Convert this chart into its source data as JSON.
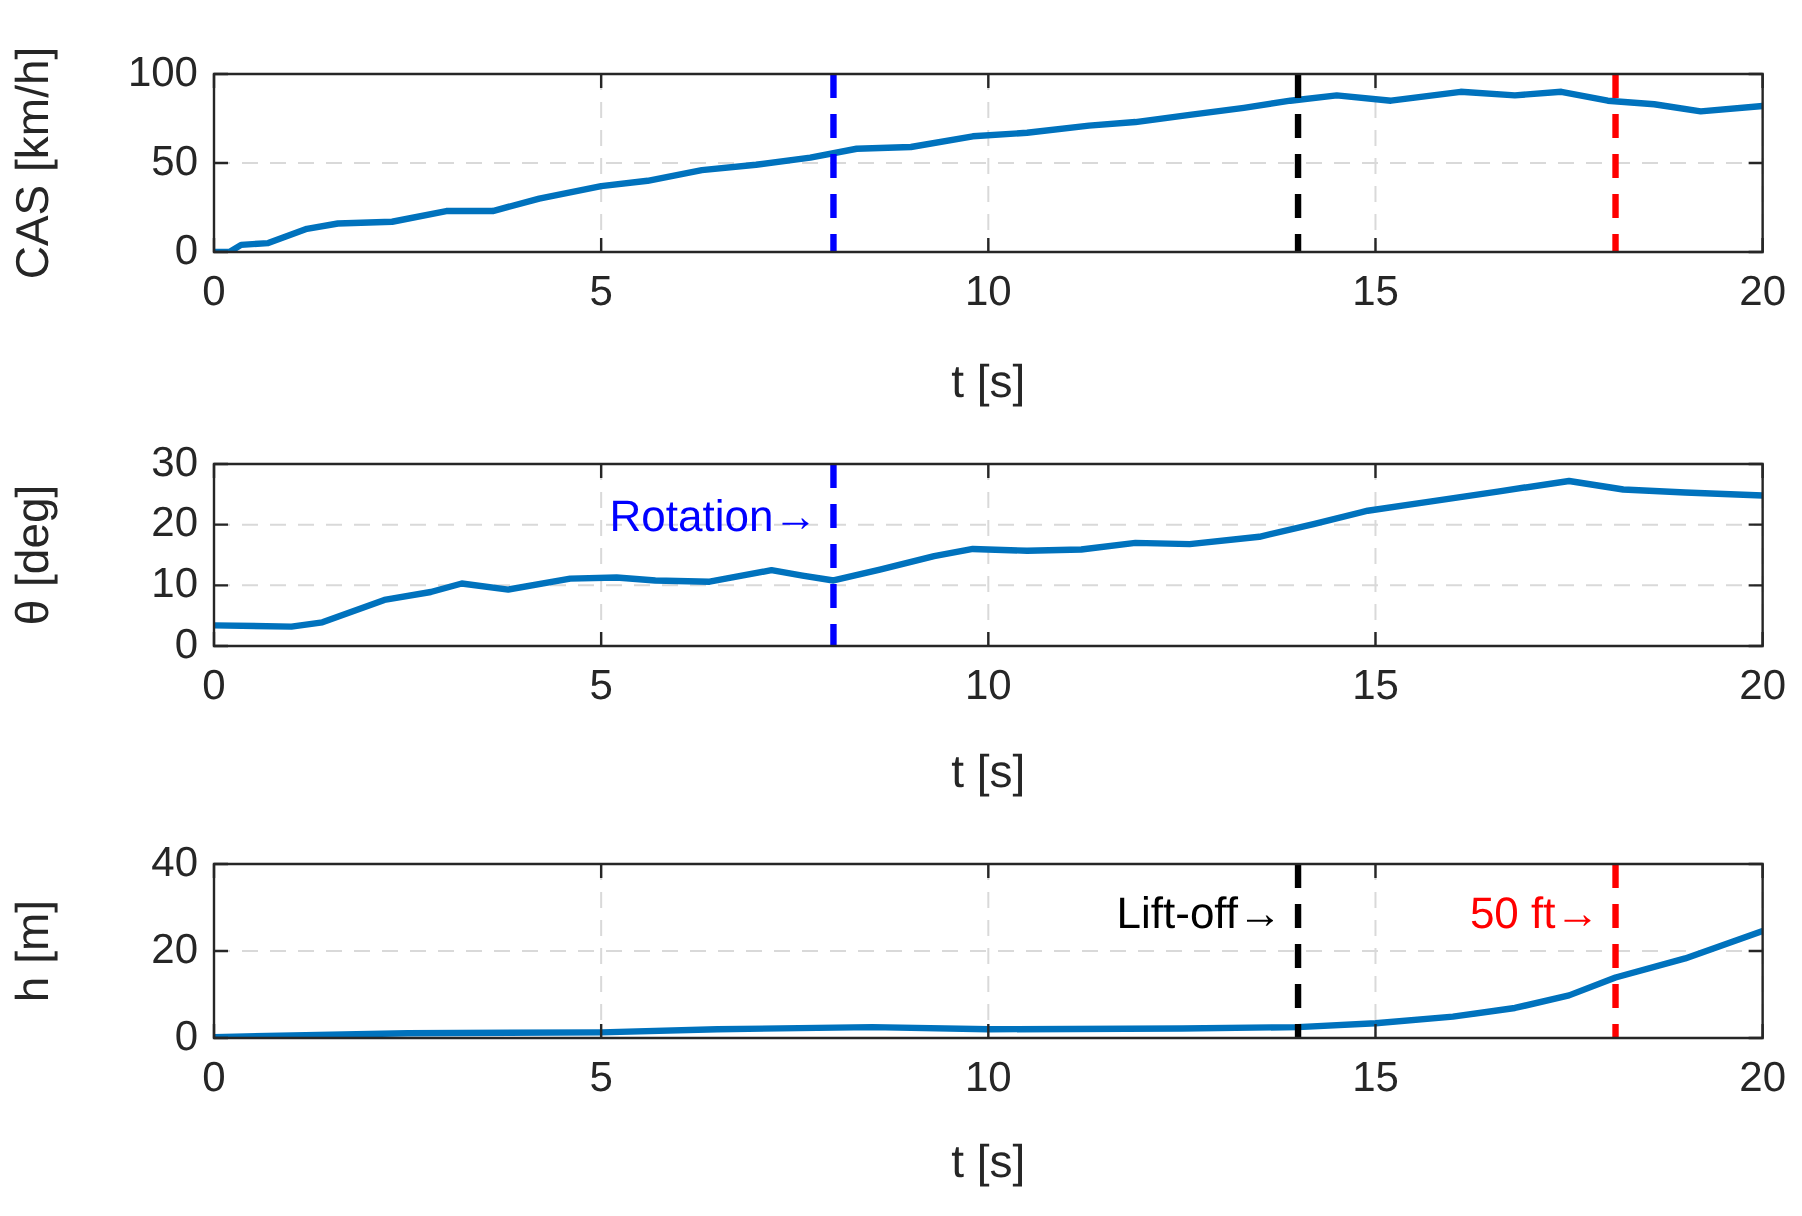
{
  "chart_data": [
    {
      "type": "line",
      "xlabel": "t [s]",
      "ylabel": "CAS [km/h]",
      "xlim": [
        0,
        20
      ],
      "xticks": [
        0,
        5,
        10,
        15,
        20
      ],
      "ylim": [
        0,
        100
      ],
      "yticks": [
        0,
        50,
        100
      ],
      "grid": true,
      "x": [
        0,
        0.2,
        0.35,
        0.7,
        1.2,
        1.6,
        2.3,
        3.0,
        3.6,
        4.2,
        5.0,
        5.6,
        6.3,
        7.0,
        7.7,
        8.3,
        9.0,
        9.8,
        10.5,
        11.3,
        11.9,
        12.6,
        13.3,
        13.9,
        14.5,
        15.2,
        16.1,
        16.8,
        17.4,
        18.0,
        18.6,
        19.2,
        20
      ],
      "series": [
        {
          "color": "#0072bd",
          "values": [
            0,
            0,
            4,
            5,
            13,
            16,
            17,
            23,
            23,
            30,
            37,
            40,
            46,
            49,
            53,
            58,
            59,
            65,
            67,
            71,
            73,
            77,
            81,
            85,
            88,
            85,
            90,
            88,
            90,
            85,
            83,
            79,
            82
          ]
        }
      ],
      "ref_lines": [
        {
          "axis": "x",
          "value": 8,
          "color": "#0000ff",
          "line_style": "dashed"
        },
        {
          "axis": "x",
          "value": 14,
          "color": "#000000",
          "line_style": "dashed"
        },
        {
          "axis": "x",
          "value": 18.1,
          "color": "#ff0000",
          "line_style": "dashed"
        }
      ]
    },
    {
      "type": "line",
      "xlabel": "t [s]",
      "ylabel": "θ [deg]",
      "xlim": [
        0,
        20
      ],
      "xticks": [
        0,
        5,
        10,
        15,
        20
      ],
      "ylim": [
        0,
        30
      ],
      "yticks": [
        0,
        10,
        20,
        30
      ],
      "grid": true,
      "x": [
        0,
        1.0,
        1.4,
        2.2,
        2.8,
        3.2,
        3.8,
        4.6,
        5.2,
        5.7,
        6.4,
        7.2,
        7.6,
        8.0,
        8.6,
        9.3,
        9.8,
        10.5,
        11.2,
        11.9,
        12.6,
        13.5,
        14.2,
        14.9,
        15.7,
        16.6,
        17.5,
        18.2,
        19.0,
        20
      ],
      "series": [
        {
          "color": "#0072bd",
          "values": [
            3.4,
            3.2,
            3.9,
            7.6,
            8.9,
            10.3,
            9.3,
            11.1,
            11.3,
            10.8,
            10.6,
            12.5,
            11.6,
            10.8,
            12.6,
            14.8,
            16.0,
            15.7,
            15.9,
            17.0,
            16.8,
            18.0,
            20.1,
            22.3,
            23.8,
            25.5,
            27.2,
            25.8,
            25.3,
            24.8
          ]
        }
      ],
      "ref_lines": [
        {
          "axis": "x",
          "value": 8,
          "label": "Rotation→",
          "color": "#0000ff",
          "line_style": "dashed"
        }
      ]
    },
    {
      "type": "line",
      "xlabel": "t [s]",
      "ylabel": "h [m]",
      "xlim": [
        0,
        20
      ],
      "xticks": [
        0,
        5,
        10,
        15,
        20
      ],
      "ylim": [
        0,
        40
      ],
      "yticks": [
        0,
        20,
        40
      ],
      "grid": true,
      "x": [
        0,
        2.5,
        5,
        6.5,
        8.5,
        10,
        12.5,
        14,
        15,
        16,
        16.8,
        17.5,
        18.1,
        19,
        20
      ],
      "series": [
        {
          "color": "#0072bd",
          "values": [
            0.2,
            1.1,
            1.3,
            2.0,
            2.5,
            2.0,
            2.2,
            2.5,
            3.4,
            4.9,
            6.9,
            9.8,
            13.9,
            18.3,
            24.6
          ]
        }
      ],
      "ref_lines": [
        {
          "axis": "x",
          "value": 14,
          "label": "Lift-off→",
          "color": "#000000",
          "line_style": "dashed"
        },
        {
          "axis": "x",
          "value": 18.1,
          "label": "50 ft→",
          "color": "#ff0000",
          "line_style": "dashed"
        }
      ]
    }
  ]
}
